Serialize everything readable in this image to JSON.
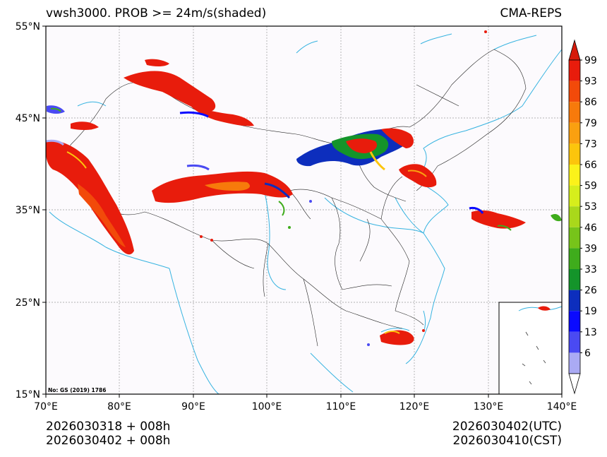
{
  "title": {
    "left": "vwsh3000. PROB >= 24m/s(shaded)",
    "right": "CMA-REPS"
  },
  "axes": {
    "lat_labels": [
      "55°N",
      "45°N",
      "35°N",
      "25°N",
      "15°N"
    ],
    "lon_labels": [
      "70°E",
      "80°E",
      "90°E",
      "100°E",
      "110°E",
      "120°E",
      "130°E",
      "140°E"
    ],
    "lat_range": [
      15,
      55
    ],
    "lon_range": [
      70,
      140
    ]
  },
  "map_note": "No: GS (2019) 1786",
  "colorbar": {
    "ticks": [
      "99",
      "93",
      "86",
      "79",
      "73",
      "66",
      "59",
      "53",
      "46",
      "39",
      "33",
      "26",
      "19",
      "13",
      "6"
    ],
    "colors": [
      "#e81c0c",
      "#f24a0a",
      "#f77a0b",
      "#faa010",
      "#fcc50c",
      "#fbf21a",
      "#d6ee1c",
      "#a9d81b",
      "#77c41a",
      "#3fac1c",
      "#14942a",
      "#0d2ebd",
      "#0a0aff",
      "#4a4af2",
      "#aaaaf4"
    ],
    "top_arrow_color": "#d61a0a",
    "bottom_arrow_color": "#ffffff"
  },
  "footer": {
    "init_line1": "2026030318  +  008h",
    "init_line2": "2026030402  +  008h",
    "valid_utc": "2026030402(UTC)",
    "valid_cst": "2026030410(CST)"
  }
}
